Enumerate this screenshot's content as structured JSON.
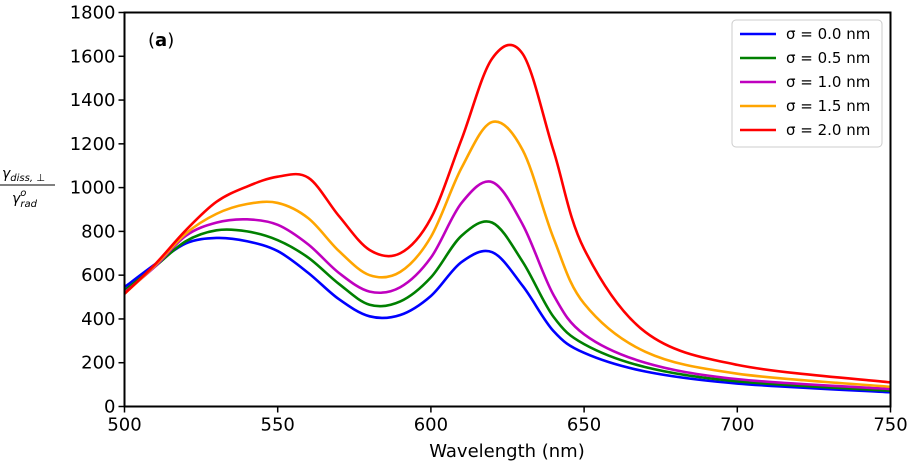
{
  "chart_data": {
    "type": "line",
    "panel_label_prefix": "(",
    "panel_label_letter": "a",
    "panel_label_suffix": ")",
    "xlabel": "Wavelength (nm)",
    "ylabel": "γdiss,⊥ / γorad",
    "ylabel_parts": {
      "num": "γ",
      "num_sub": "diss, ⊥",
      "den": "γ",
      "den_sup": "o",
      "den_sub": "rad"
    },
    "xlim": [
      500,
      750
    ],
    "ylim": [
      0,
      1800
    ],
    "xticks": [
      "500",
      "550",
      "600",
      "650",
      "700",
      "750"
    ],
    "yticks": [
      "0",
      "200",
      "400",
      "600",
      "800",
      "1000",
      "1200",
      "1400",
      "1600",
      "1800"
    ],
    "legend_position": "top-right",
    "grid": false,
    "x": [
      500,
      510,
      520,
      530,
      540,
      550,
      560,
      570,
      580,
      590,
      600,
      610,
      620,
      630,
      640,
      650,
      670,
      700,
      750
    ],
    "series": [
      {
        "name": "σ = 0.0 nm",
        "color": "#0000ff",
        "values": [
          545,
          650,
          745,
          770,
          755,
          710,
          610,
          490,
          412,
          418,
          505,
          660,
          705,
          550,
          345,
          245,
          160,
          105,
          65
        ]
      },
      {
        "name": "σ = 0.5 nm",
        "color": "#008000",
        "values": [
          530,
          640,
          755,
          805,
          800,
          760,
          680,
          560,
          465,
          480,
          590,
          780,
          840,
          660,
          410,
          285,
          180,
          115,
          72
        ]
      },
      {
        "name": "σ = 1.0 nm",
        "color": "#bf00bf",
        "values": [
          520,
          640,
          780,
          840,
          855,
          830,
          740,
          610,
          525,
          545,
          680,
          930,
          1025,
          830,
          510,
          330,
          200,
          125,
          80
        ]
      },
      {
        "name": "σ = 1.5 nm",
        "color": "#ffa500",
        "values": [
          515,
          645,
          790,
          880,
          925,
          930,
          860,
          710,
          600,
          615,
          775,
          1090,
          1300,
          1170,
          770,
          470,
          250,
          150,
          90
        ]
      },
      {
        "name": "σ = 2.0 nm",
        "color": "#ff0000",
        "values": [
          515,
          650,
          805,
          935,
          1005,
          1050,
          1045,
          870,
          715,
          700,
          860,
          1220,
          1590,
          1610,
          1170,
          720,
          340,
          190,
          110
        ]
      }
    ]
  }
}
